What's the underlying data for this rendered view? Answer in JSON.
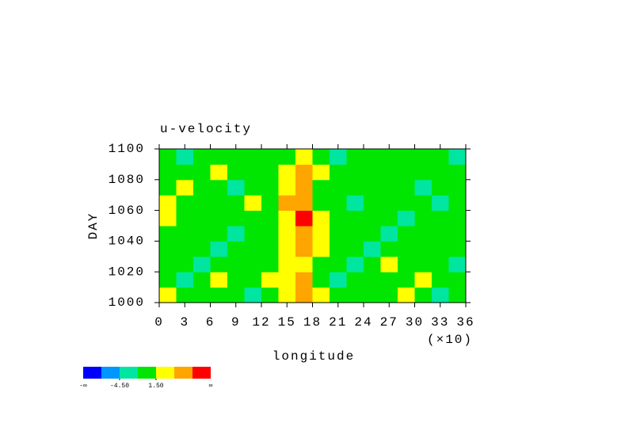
{
  "chart_data": {
    "type": "heatmap",
    "title": "u-velocity",
    "x_label": "longitude",
    "x_scale_note": "(×10)",
    "y_label": "DAY",
    "xlim": [
      0,
      36
    ],
    "xticks": [
      0,
      3,
      6,
      9,
      12,
      15,
      18,
      21,
      24,
      27,
      30,
      33,
      36
    ],
    "ylim": [
      1000,
      1100
    ],
    "yticks": [
      1000,
      1020,
      1040,
      1060,
      1080,
      1100
    ],
    "x": [
      1,
      3,
      5,
      7,
      9,
      11,
      13,
      15,
      17,
      19,
      21,
      23,
      25,
      27,
      29,
      31,
      33,
      35
    ],
    "y": [
      1005,
      1015,
      1025,
      1035,
      1045,
      1055,
      1065,
      1075,
      1085,
      1095
    ],
    "values": [
      [
        2,
        0,
        -1,
        1,
        0,
        -2,
        1,
        3,
        6,
        2,
        0,
        -1,
        1,
        0,
        2,
        0,
        -2,
        1
      ],
      [
        1,
        -2,
        0,
        2,
        -1,
        0,
        2,
        3,
        5,
        1,
        -2,
        0,
        1,
        -1,
        0,
        2,
        -1,
        0
      ],
      [
        0,
        1,
        -2,
        0,
        1,
        -1,
        0,
        4,
        3,
        0,
        1,
        -2,
        0,
        2,
        -1,
        0,
        1,
        -2
      ],
      [
        -1,
        0,
        1,
        -2,
        0,
        1,
        -1,
        2,
        5,
        2,
        -1,
        0,
        -2,
        0,
        1,
        -1,
        0,
        1
      ],
      [
        1,
        -1,
        0,
        1,
        -2,
        0,
        1,
        3,
        6,
        3,
        0,
        -1,
        1,
        -2,
        0,
        1,
        -1,
        0
      ],
      [
        2,
        0,
        -1,
        0,
        1,
        -1,
        0,
        4,
        8,
        2,
        -1,
        0,
        1,
        0,
        -2,
        0,
        1,
        -1
      ],
      [
        3,
        1,
        0,
        -1,
        0,
        2,
        0,
        5,
        6,
        1,
        0,
        -2,
        0,
        1,
        -1,
        0,
        -2,
        0
      ],
      [
        0,
        2,
        1,
        0,
        -2,
        0,
        1,
        3,
        5,
        0,
        1,
        0,
        -1,
        0,
        1,
        -2,
        0,
        1
      ],
      [
        1,
        0,
        -1,
        2,
        0,
        -1,
        0,
        2,
        6,
        2,
        0,
        1,
        0,
        -1,
        0,
        1,
        -1,
        0
      ],
      [
        0,
        -2,
        0,
        1,
        -1,
        0,
        -1,
        1,
        4,
        0,
        -2,
        0,
        1,
        0,
        -1,
        0,
        1,
        -2
      ]
    ],
    "colorbar": {
      "colors": [
        "#0000ff",
        "#0096ff",
        "#00e6a0",
        "#00e600",
        "#ffff00",
        "#ffa500",
        "#ff0000"
      ],
      "bounds": [
        -7.5,
        -4.5,
        -1.5,
        1.5,
        4.5,
        7.5
      ],
      "ticks": [
        {
          "value": -4.5,
          "label": "-4.50"
        },
        {
          "value": 1.5,
          "label": "1.50"
        }
      ],
      "ends": [
        "-∞",
        "∞"
      ]
    }
  }
}
